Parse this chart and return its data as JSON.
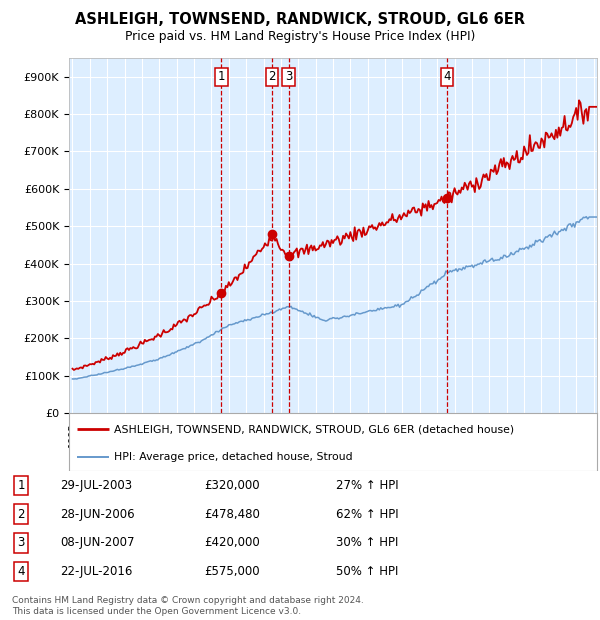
{
  "title": "ASHLEIGH, TOWNSEND, RANDWICK, STROUD, GL6 6ER",
  "subtitle": "Price paid vs. HM Land Registry's House Price Index (HPI)",
  "background_color": "#ffffff",
  "plot_bg_color": "#ddeeff",
  "grid_color": "#ffffff",
  "x_start_year": 1995,
  "x_end_year": 2025,
  "ylim": [
    0,
    950000
  ],
  "yticks": [
    0,
    100000,
    200000,
    300000,
    400000,
    500000,
    600000,
    700000,
    800000,
    900000
  ],
  "ytick_labels": [
    "£0",
    "£100K",
    "£200K",
    "£300K",
    "£400K",
    "£500K",
    "£600K",
    "£700K",
    "£800K",
    "£900K"
  ],
  "sales": [
    {
      "num": 1,
      "date_label": "29-JUL-2003",
      "price": 320000,
      "price_str": "£320,000",
      "pct": "27%",
      "year": 2003.57
    },
    {
      "num": 2,
      "date_label": "28-JUN-2006",
      "price": 478480,
      "price_str": "£478,480",
      "pct": "62%",
      "year": 2006.49
    },
    {
      "num": 3,
      "date_label": "08-JUN-2007",
      "price": 420000,
      "price_str": "£420,000",
      "pct": "30%",
      "year": 2007.44
    },
    {
      "num": 4,
      "date_label": "22-JUL-2016",
      "price": 575000,
      "price_str": "£575,000",
      "pct": "50%",
      "year": 2016.56
    }
  ],
  "legend_red_label": "ASHLEIGH, TOWNSEND, RANDWICK, STROUD, GL6 6ER (detached house)",
  "legend_blue_label": "HPI: Average price, detached house, Stroud",
  "footer": "Contains HM Land Registry data © Crown copyright and database right 2024.\nThis data is licensed under the Open Government Licence v3.0.",
  "red_color": "#cc0000",
  "blue_color": "#6699cc",
  "prop_anchors_years": [
    1995.0,
    2003.57,
    2006.49,
    2007.44,
    2016.56,
    2024.8
  ],
  "prop_anchors_prices": [
    115000,
    320000,
    478480,
    420000,
    575000,
    820000
  ],
  "hpi_anchors_years": [
    1995.0,
    2000.0,
    2004.0,
    2007.5,
    2009.5,
    2014.0,
    2016.56,
    2020.0,
    2024.8
  ],
  "hpi_anchors_prices": [
    90000,
    145000,
    235000,
    285000,
    248000,
    290000,
    375000,
    420000,
    530000
  ]
}
